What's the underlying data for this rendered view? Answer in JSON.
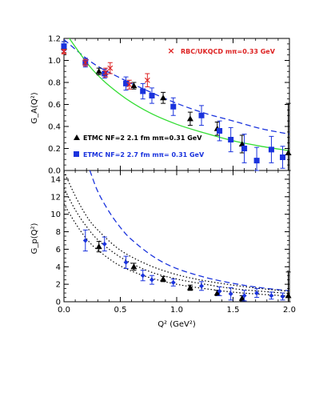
{
  "chart_data": [
    {
      "type": "scatter",
      "panel": "top",
      "ylabel": "G_A(Q²)",
      "xlim": [
        0,
        2.0
      ],
      "ylim": [
        0,
        1.2
      ],
      "ytick_labels": [
        "0.0",
        "0.2",
        "0.4",
        "0.6",
        "0.8",
        "1.0",
        "1.2"
      ],
      "grid": false,
      "legend": [
        {
          "text": "RBC/UKQCD  mπ=0.33 GeV",
          "color": "#dd2222",
          "marker": "cross"
        },
        {
          "text": "ETMC  NF=2   2.1 fm    mπ=0.31 GeV",
          "color": "#000000",
          "marker": "triangle"
        },
        {
          "text": "ETMC  NF=2   2.7 fm    mπ= 0.31 GeV",
          "color": "#1a33dd",
          "marker": "square"
        }
      ],
      "series": [
        {
          "name": "ETMC  NF=2   2.1 fm    mπ=0.31 GeV",
          "marker": "triangle",
          "color": "#000000",
          "x": [
            0,
            0.31,
            0.62,
            0.88,
            1.12,
            1.36,
            1.58,
            1.99
          ],
          "y": [
            1.12,
            0.9,
            0.77,
            0.66,
            0.47,
            0.38,
            0.24,
            0.16
          ],
          "err": [
            0.05,
            0.03,
            0.03,
            0.05,
            0.06,
            0.06,
            0.08,
            0.45
          ]
        },
        {
          "name": "ETMC  NF=2   2.7 fm    mπ= 0.31 GeV",
          "marker": "square",
          "color": "#1a33dd",
          "x": [
            0,
            0.19,
            0.36,
            0.55,
            0.7,
            0.78,
            0.97,
            1.22,
            1.38,
            1.48,
            1.6,
            1.71,
            1.84,
            1.94
          ],
          "y": [
            1.13,
            0.98,
            0.88,
            0.79,
            0.72,
            0.68,
            0.58,
            0.5,
            0.36,
            0.28,
            0.2,
            0.09,
            0.19,
            0.12
          ],
          "err": [
            0.04,
            0.04,
            0.04,
            0.06,
            0.07,
            0.07,
            0.08,
            0.09,
            0.09,
            0.11,
            0.13,
            0.12,
            0.12,
            0.1
          ]
        },
        {
          "name": "RBC/UKQCD  mπ=0.33 GeV",
          "marker": "cross",
          "color": "#dd2222",
          "x": [
            0,
            0.19,
            0.37,
            0.41,
            0.58,
            0.74
          ],
          "y": [
            1.08,
            0.98,
            0.89,
            0.93,
            0.78,
            0.82
          ],
          "err": [
            0.02,
            0.03,
            0.04,
            0.05,
            0.04,
            0.06
          ]
        }
      ],
      "curves": [
        {
          "style": "dashed",
          "color": "#1a33dd",
          "x": [
            0,
            0.25,
            0.5,
            0.75,
            1.0,
            1.25,
            1.5,
            1.75,
            2.0
          ],
          "y": [
            1.19,
            0.98,
            0.84,
            0.72,
            0.61,
            0.52,
            0.45,
            0.38,
            0.33
          ]
        },
        {
          "style": "solid",
          "color": "#33dd33",
          "x": [
            0,
            0.25,
            0.5,
            0.75,
            1.0,
            1.25,
            1.5,
            1.75,
            2.0
          ],
          "y": [
            1.27,
            0.92,
            0.69,
            0.53,
            0.42,
            0.34,
            0.27,
            0.22,
            0.18
          ]
        }
      ]
    },
    {
      "type": "scatter",
      "panel": "bottom",
      "xlabel": "Q² (GeV²)",
      "ylabel": "G_p(Q²)",
      "xlim": [
        0,
        2.0
      ],
      "ylim": [
        0,
        15
      ],
      "xtick_labels": [
        "0.0",
        "0.5",
        "1.0",
        "1.5",
        "2.0"
      ],
      "ytick_labels": [
        "0",
        "2",
        "4",
        "6",
        "8",
        "10",
        "12",
        "14"
      ],
      "grid": false,
      "series": [
        {
          "name": "ETMC  NF=2   2.1 fm    mπ=0.31 GeV",
          "marker": "triangle",
          "color": "#000000",
          "x": [
            0.31,
            0.62,
            0.88,
            1.12,
            1.36,
            1.58,
            1.99
          ],
          "y": [
            6.3,
            4.0,
            2.6,
            1.6,
            1.0,
            0.4,
            0.7
          ],
          "err": [
            0.6,
            0.4,
            0.3,
            0.3,
            0.3,
            0.3,
            2.7
          ]
        },
        {
          "name": "ETMC  NF=2   2.7 fm    mπ= 0.31 GeV",
          "marker": "star",
          "color": "#1a33dd",
          "x": [
            0.19,
            0.36,
            0.55,
            0.7,
            0.78,
            0.97,
            1.22,
            1.38,
            1.48,
            1.6,
            1.71,
            1.84,
            1.94
          ],
          "y": [
            7.0,
            6.6,
            4.5,
            3.0,
            2.5,
            2.2,
            1.8,
            1.2,
            0.9,
            0.7,
            1.0,
            0.7,
            0.6
          ],
          "err": [
            1.2,
            0.8,
            0.7,
            0.6,
            0.5,
            0.4,
            0.5,
            0.5,
            0.7,
            0.6,
            0.5,
            0.4,
            0.4
          ]
        }
      ],
      "curves": [
        {
          "style": "dashed",
          "color": "#1a33dd",
          "x": [
            0.23,
            0.3,
            0.4,
            0.5,
            0.6,
            0.8,
            1.0,
            1.25,
            1.5,
            1.75,
            2.0
          ],
          "y": [
            15.0,
            12.6,
            10.3,
            8.5,
            7.1,
            5.1,
            3.8,
            2.8,
            2.1,
            1.6,
            1.25
          ]
        },
        {
          "style": "dotted",
          "color": "#000000",
          "x": [
            0,
            0.1,
            0.2,
            0.3,
            0.5,
            0.75,
            1.0,
            1.25,
            1.5,
            1.75,
            2.0
          ],
          "y": [
            14.9,
            12.1,
            9.8,
            8.2,
            5.9,
            4.2,
            3.1,
            2.4,
            1.9,
            1.5,
            1.2
          ]
        },
        {
          "style": "dotted",
          "color": "#000000",
          "x": [
            0,
            0.1,
            0.2,
            0.3,
            0.5,
            0.75,
            1.0,
            1.25,
            1.5,
            1.75,
            2.0
          ],
          "y": [
            13.0,
            10.5,
            8.6,
            7.1,
            5.1,
            3.5,
            2.6,
            2.0,
            1.5,
            1.2,
            0.95
          ]
        },
        {
          "style": "dotted",
          "color": "#000000",
          "x": [
            0,
            0.1,
            0.2,
            0.3,
            0.5,
            0.75,
            1.0,
            1.25,
            1.5,
            1.75,
            2.0
          ],
          "y": [
            11.2,
            9.0,
            7.2,
            5.9,
            4.1,
            2.8,
            2.0,
            1.5,
            1.1,
            0.85,
            0.65
          ]
        }
      ]
    }
  ]
}
